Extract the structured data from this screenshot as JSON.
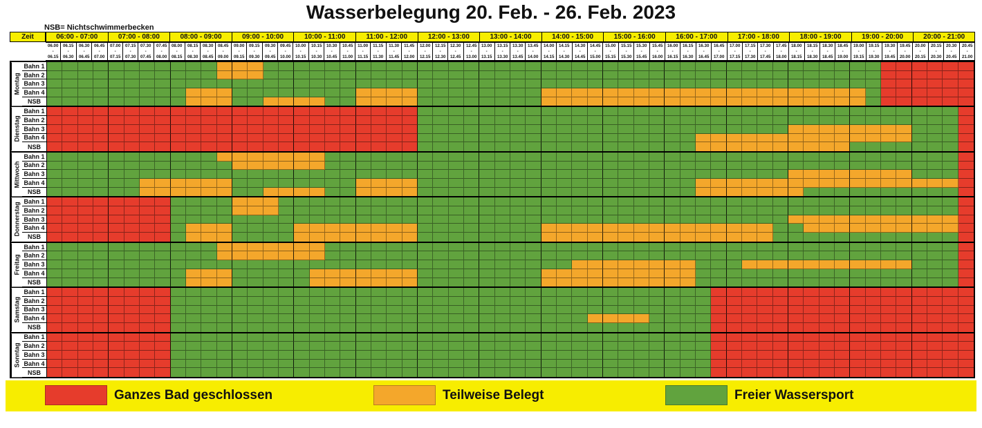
{
  "title": "Wasserbelegung 20. Feb. - 26. Feb. 2023",
  "note": "NSB= Nichtschwimmerbecken",
  "zeit_label": "Zeit",
  "dash_label": "-",
  "hours": [
    "06:00 - 07:00",
    "07:00 - 08:00",
    "08:00 - 09:00",
    "09:00 - 10:00",
    "10:00 - 11:00",
    "11:00 - 12:00",
    "12:00 - 13:00",
    "13:00 - 14:00",
    "14:00 - 15:00",
    "15:00 - 16:00",
    "16:00 - 17:00",
    "17:00 - 18:00",
    "18:00 - 19:00",
    "19:00 - 20:00",
    "20:00 - 21:00"
  ],
  "slot_times": [
    "06.00",
    "06.15",
    "06.30",
    "06.45",
    "07.00",
    "07.15",
    "07.30",
    "07.45",
    "08.00",
    "08.15",
    "08.30",
    "08.45",
    "09.00",
    "09.15",
    "09.30",
    "09.45",
    "10.00",
    "10.15",
    "10.30",
    "10.45",
    "11.00",
    "11.15",
    "11.30",
    "11.45",
    "12.00",
    "12.15",
    "12.30",
    "12.45",
    "13.00",
    "13.15",
    "13.30",
    "13.45",
    "14.00",
    "14.15",
    "14.30",
    "14.45",
    "15.00",
    "15.15",
    "15.30",
    "15.45",
    "16.00",
    "16.15",
    "16.30",
    "16.45",
    "17.00",
    "17.15",
    "17.30",
    "17.45",
    "18.00",
    "18.15",
    "18.30",
    "18.45",
    "19.00",
    "19.15",
    "19.30",
    "19.45",
    "20.00",
    "20.15",
    "20.30",
    "20.45",
    "21.00"
  ],
  "status_codes": {
    "R": "Ganzes Bad geschlossen",
    "O": "Teilweise Belegt",
    "G": "Freier Wassersport"
  },
  "colors": {
    "R": "#e63c2c",
    "O": "#f4a72b",
    "G": "#61a33e",
    "header_yellow": "#f7ed00",
    "legend_band_yellow": "#f7ed00"
  },
  "days": [
    {
      "name": "Montag",
      "rows": [
        {
          "label": "Bahn 1",
          "pattern": "G11 O3 G40 R6"
        },
        {
          "label": "Bahn 2",
          "pattern": "G11 O3 G40 R6"
        },
        {
          "label": "Bahn 3",
          "pattern": "G54 R6"
        },
        {
          "label": "Bahn 4",
          "pattern": "G9 O3 G8 O4 G8 O21 G1 R6"
        },
        {
          "label": "NSB",
          "pattern": "G9 O3 G2 O4 G2 O4 G8 O21 G1 R6"
        }
      ]
    },
    {
      "name": "Dienstag",
      "rows": [
        {
          "label": "Bahn 1",
          "pattern": "R24 G35 R1"
        },
        {
          "label": "Bahn 2",
          "pattern": "R24 G35 R1"
        },
        {
          "label": "Bahn 3",
          "pattern": "R24 G24 O8 G3 R1"
        },
        {
          "label": "Bahn 4",
          "pattern": "R24 G18 O14 G3 R1"
        },
        {
          "label": "NSB",
          "pattern": "R24 G18 O10 G7 R1"
        }
      ]
    },
    {
      "name": "Mittwoch",
      "rows": [
        {
          "label": "Bahn 1",
          "pattern": "G11 O7 G41 R1"
        },
        {
          "label": "Bahn 2",
          "pattern": "G12 O6 G41 R1"
        },
        {
          "label": "Bahn 3",
          "pattern": "G48 O8 G3 R1"
        },
        {
          "label": "Bahn 4",
          "pattern": "G6 O6 G8 O4 G18 O17 R1"
        },
        {
          "label": "NSB",
          "pattern": "G6 O6 G2 O4 G2 O4 G18 O7 G10 R1"
        }
      ]
    },
    {
      "name": "Donnerstag",
      "rows": [
        {
          "label": "Bahn 1",
          "pattern": "R8 G4 O3 G44 R1"
        },
        {
          "label": "Bahn 2",
          "pattern": "R8 G4 O3 G44 R1"
        },
        {
          "label": "Bahn 3",
          "pattern": "R8 G40 O11 R1"
        },
        {
          "label": "Bahn 4",
          "pattern": "R8 G1 O3 G4 O8 G8 O15 G2 O10 R1"
        },
        {
          "label": "NSB",
          "pattern": "R8 G1 O3 G4 O8 G8 O15 G12 R1"
        }
      ]
    },
    {
      "name": "Freitag",
      "rows": [
        {
          "label": "Bahn 1",
          "pattern": "G11 O7 G41 R1"
        },
        {
          "label": "Bahn 2",
          "pattern": "G11 O7 G41 R1"
        },
        {
          "label": "Bahn 3",
          "pattern": "G34 O8 G3 O11 G3 R1"
        },
        {
          "label": "Bahn 4",
          "pattern": "G9 O3 G5 O7 G8 O10 G17 R1"
        },
        {
          "label": "NSB",
          "pattern": "G9 O3 G5 O7 G8 O10 G17 R1"
        }
      ]
    },
    {
      "name": "Samstag",
      "rows": [
        {
          "label": "Bahn 1",
          "pattern": "R8 G35 R17"
        },
        {
          "label": "Bahn 2",
          "pattern": "R8 G35 R17"
        },
        {
          "label": "Bahn 3",
          "pattern": "R8 G35 R17"
        },
        {
          "label": "Bahn 4",
          "pattern": "R8 G27 O4 G4 R17"
        },
        {
          "label": "NSB",
          "pattern": "R8 G35 R17"
        }
      ]
    },
    {
      "name": "Sonntag",
      "rows": [
        {
          "label": "Bahn 1",
          "pattern": "R8 G35 R17"
        },
        {
          "label": "Bahn 2",
          "pattern": "R8 G35 R17"
        },
        {
          "label": "Bahn 3",
          "pattern": "R8 G35 R17"
        },
        {
          "label": "Bahn 4",
          "pattern": "R8 G35 R17"
        },
        {
          "label": "NSB",
          "pattern": "R8 G35 R17"
        }
      ]
    },
    {
      "_comment": "unused",
      "name": "",
      "rows": []
    }
  ],
  "legend": {
    "items": [
      {
        "key": "R",
        "label": "Ganzes Bad geschlossen"
      },
      {
        "key": "O",
        "label": "Teilweise Belegt"
      },
      {
        "key": "G",
        "label": "Freier Wassersport"
      }
    ]
  }
}
